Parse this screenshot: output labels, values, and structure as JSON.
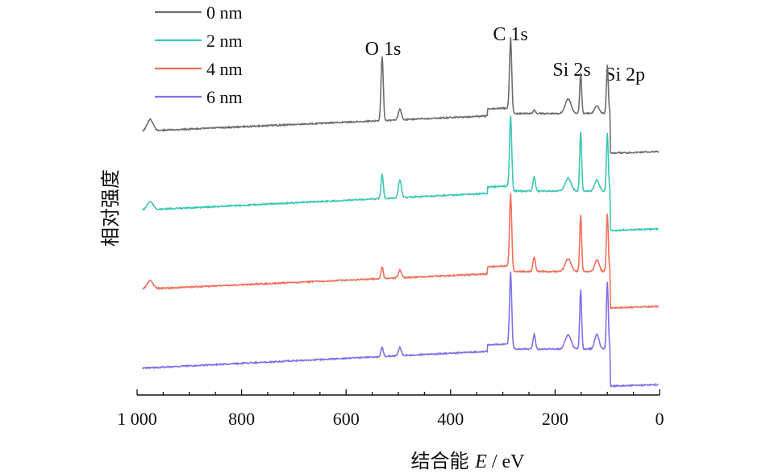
{
  "chart_data": {
    "type": "line",
    "xlabel": "结合能 E / eV",
    "ylabel": "相对强度",
    "xlim": [
      1000,
      0
    ],
    "x_reversed": true,
    "x_ticks": [
      1000,
      800,
      600,
      400,
      200,
      0
    ],
    "x_tick_labels": [
      "1 000",
      "800",
      "600",
      "400",
      "200",
      "0"
    ],
    "legend_position": "top-left",
    "grid": false,
    "series": [
      {
        "name": "0 nm",
        "color": "#6d6d6d"
      },
      {
        "name": "2 nm",
        "color": "#3cc7b4"
      },
      {
        "name": "4 nm",
        "color": "#f0705a"
      },
      {
        "name": "6 nm",
        "color": "#7d72ea"
      }
    ],
    "peak_labels": [
      {
        "text": "O 1s",
        "x": 531
      },
      {
        "text": "C 1s",
        "x": 285
      },
      {
        "text": "Si 2s",
        "x": 151
      },
      {
        "text": "Si 2p",
        "x": 100
      }
    ]
  }
}
